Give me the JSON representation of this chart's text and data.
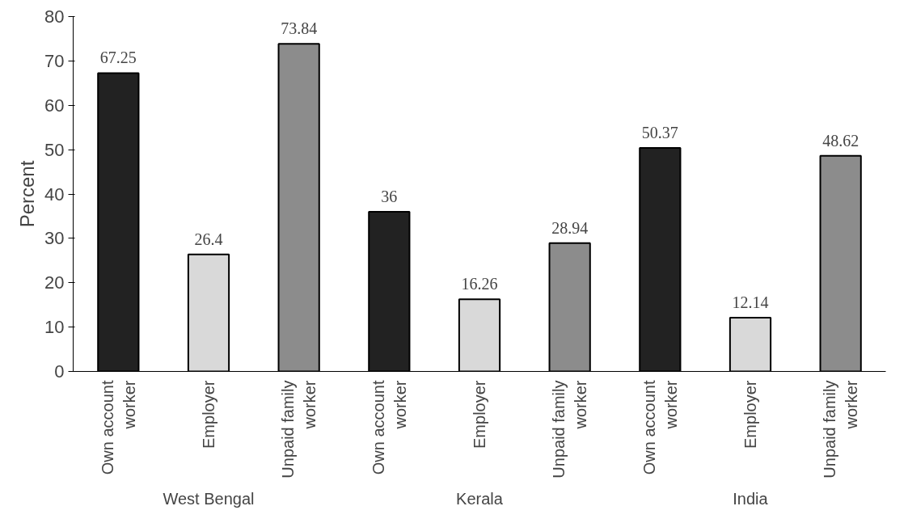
{
  "chart_data": {
    "type": "bar",
    "ylabel": "Percent",
    "categories": [
      "Own account worker",
      "Employer",
      "Unpaid family worker",
      "Own account worker",
      "Employer",
      "Unpaid family worker",
      "Own account worker",
      "Employer",
      "Unpaid family worker"
    ],
    "values": [
      67.25,
      26.4,
      73.84,
      36,
      16.26,
      28.94,
      50.37,
      12.14,
      48.62
    ],
    "colors": [
      "#222222",
      "#d9d9d9",
      "#8c8c8c",
      "#222222",
      "#d9d9d9",
      "#8c8c8c",
      "#222222",
      "#d9d9d9",
      "#8c8c8c"
    ],
    "annotations": [
      "West Bengal",
      "Kerala",
      "India"
    ],
    "ylim": [
      0,
      80
    ],
    "yticks": [
      0,
      10,
      20,
      30,
      40,
      50,
      60,
      70,
      80
    ],
    "grid": false,
    "data_labels": true
  }
}
